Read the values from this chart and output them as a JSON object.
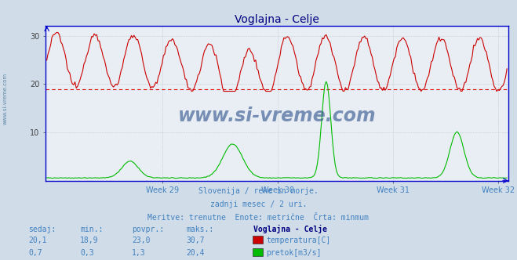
{
  "title": "Voglajna - Celje",
  "title_color": "#000080",
  "bg_color": "#d0dce8",
  "plot_bg_color": "#e8eef4",
  "grid_color": "#b0bcc8",
  "axis_color": "#0000cc",
  "x_labels": [
    "Week 29",
    "Week 30",
    "Week 31",
    "Week 32"
  ],
  "x_label_color": "#4080c0",
  "y_min": 0,
  "y_max": 32,
  "y_ticks": [
    10,
    20,
    30
  ],
  "temp_color": "#cc0000",
  "flow_color": "#00bb00",
  "temp_min_line": 18.9,
  "temp_min_line_color": "#dd0000",
  "subtitle1": "Slovenija / reke in morje.",
  "subtitle2": "zadnji mesec / 2 uri.",
  "subtitle3": "Meritve: trenutne  Enote: metrične  Črta: minmum",
  "subtitle_color": "#4080c0",
  "table_headers": [
    "sedaj:",
    "min.:",
    "povpr.:",
    "maks.:",
    "Voglajna - Celje"
  ],
  "table_row1": [
    "20,1",
    "18,9",
    "23,0",
    "30,7"
  ],
  "table_row2": [
    "0,7",
    "0,3",
    "1,3",
    "20,4"
  ],
  "legend1": "temperatura[C]",
  "legend2": "pretok[m3/s]",
  "table_color": "#4080c0",
  "table_header_color": "#000080",
  "watermark": "www.si-vreme.com",
  "watermark_color": "#1a4080",
  "sidewatermark_color": "#5080a0",
  "n_points": 360
}
